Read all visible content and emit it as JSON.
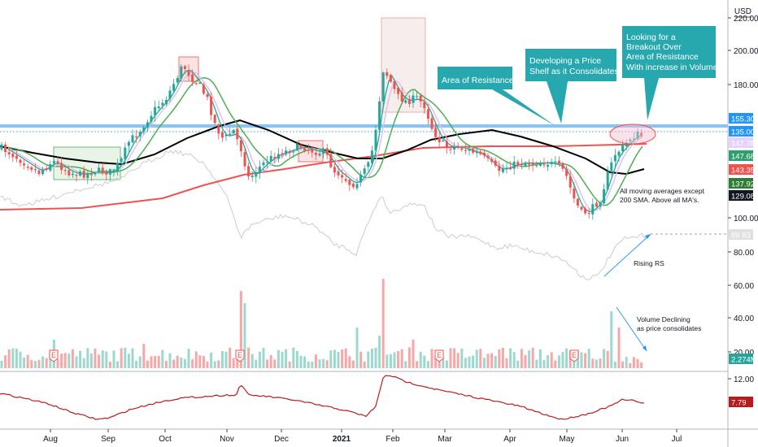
{
  "currency": "USD",
  "chart_data": [
    {
      "type": "candlestick",
      "panel": "price",
      "y_ticks": [
        "220.00",
        "200.00",
        "180.00",
        "155.30",
        "135.00",
        "100.00",
        "80.00",
        "60.00",
        "40.00",
        "20.00",
        "12.00"
      ],
      "x_ticks": [
        "Aug",
        "Sep",
        "Oct",
        "Nov",
        "Dec",
        "2021",
        "Feb",
        "Mar",
        "Apr",
        "May",
        "Jun",
        "Jul"
      ],
      "price_labels": [
        {
          "text": "155.30",
          "color": "#2196f3"
        },
        {
          "text": "135.00",
          "color": "#2196f3"
        },
        {
          "text": "147.78",
          "color": "#e6d2ff"
        },
        {
          "text": "147.68",
          "color": "#2e9e6e"
        },
        {
          "text": "143.35",
          "color": "#ef5350"
        },
        {
          "text": "137.92",
          "color": "#2e7d32"
        },
        {
          "text": "129.08",
          "color": "#131722"
        },
        {
          "text": "89.83",
          "color": "#e0e0e0"
        },
        {
          "text": "2.274M",
          "color": "#26a69a"
        },
        {
          "text": "7.79",
          "color": "#b71c1c"
        }
      ],
      "resistance_level": 155.3,
      "annotations": [
        {
          "text": [
            "Area of Resistance"
          ]
        },
        {
          "text": [
            "Developing a Price",
            "Shelf as it Consolidates"
          ]
        },
        {
          "text": [
            "Looking for a",
            "Breakout Over",
            "Area of Resistance",
            "With increase in Volume"
          ]
        }
      ],
      "notes": [
        {
          "text": [
            "All moving averages except",
            "200 SMA. Above all MA's."
          ]
        },
        {
          "text": [
            "Rising RS"
          ]
        },
        {
          "text": [
            "Volume Declining",
            "as price consolidates"
          ]
        }
      ],
      "earnings_marker": "E",
      "colors": {
        "up": "#26a69a",
        "down": "#ef5350",
        "resistance": "#2196f3",
        "ma_black": "#000000",
        "ma_red": "#ef5350",
        "ma_green": "#4caf50",
        "ma_teal": "#26a69a",
        "ma_pink": "#e1bee7",
        "rs_line": "#cccccc",
        "osc": "#b71c1c",
        "callout": "#26a8ae"
      }
    }
  ]
}
